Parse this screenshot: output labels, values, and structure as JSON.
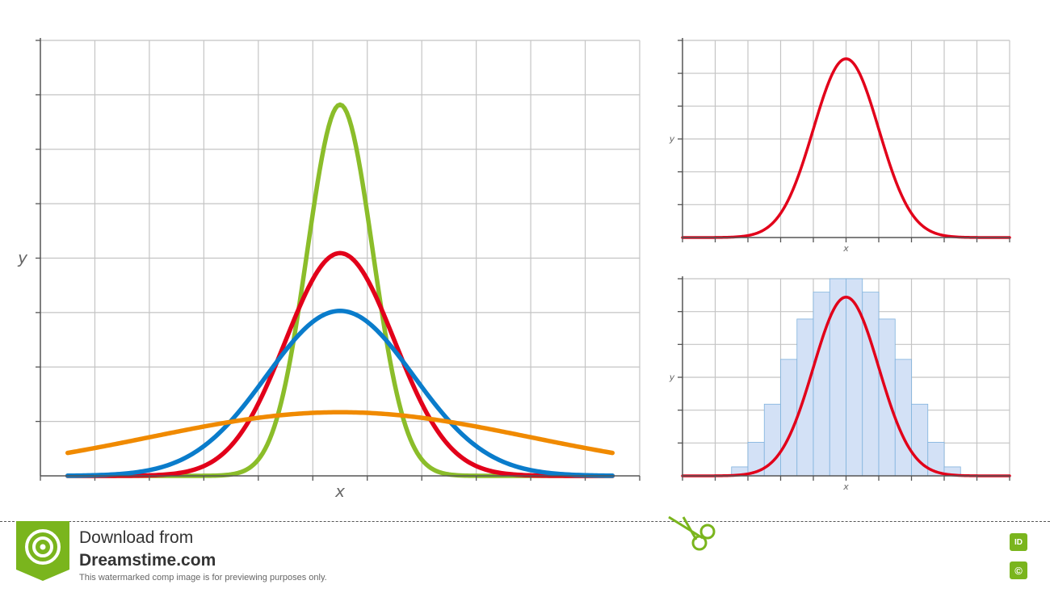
{
  "chart_data": [
    {
      "type": "line",
      "title": "",
      "xlabel": "x",
      "ylabel": "y",
      "grid": true,
      "xlim": [
        -5.5,
        5.5
      ],
      "ylim": [
        0,
        0.78
      ],
      "series": [
        {
          "mean": 0,
          "sd": 0.6,
          "color": "#8bbd2a"
        },
        {
          "mean": 0,
          "sd": 1.0,
          "color": "#e2001a"
        },
        {
          "mean": 0,
          "sd": 1.35,
          "color": "#0a7ccb"
        },
        {
          "mean": 0,
          "sd": 3.5,
          "color": "#f08a00"
        }
      ]
    },
    {
      "type": "line",
      "title": "",
      "xlabel": "x",
      "ylabel": "y",
      "grid": true,
      "xlim": [
        -5,
        5
      ],
      "ylim": [
        0,
        0.44
      ],
      "series": [
        {
          "mean": 0,
          "sd": 1.0,
          "color": "#e2001a"
        }
      ]
    },
    {
      "type": "bar",
      "title": "",
      "xlabel": "x",
      "ylabel": "y",
      "grid": true,
      "xlim": [
        -5,
        5
      ],
      "ylim": [
        0,
        0.44
      ],
      "categories": [
        -3.25,
        -2.75,
        -2.25,
        -1.75,
        -1.25,
        -0.75,
        -0.25,
        0.25,
        0.75,
        1.25,
        1.75,
        2.25,
        2.75,
        3.25
      ],
      "values": [
        0.02,
        0.075,
        0.16,
        0.26,
        0.35,
        0.41,
        0.44,
        0.44,
        0.41,
        0.35,
        0.26,
        0.16,
        0.075,
        0.02
      ],
      "bar_color": "#d3e1f6",
      "overlay_curve": {
        "mean": 0,
        "sd": 1.0,
        "color": "#e2001a"
      }
    }
  ],
  "footer": {
    "title": "Download from",
    "site": "Dreamstime.com",
    "note": "This watermarked comp image is for previewing purposes only.",
    "id_label": "ID",
    "copyright_label": "©",
    "accent": "#7ab51d"
  }
}
